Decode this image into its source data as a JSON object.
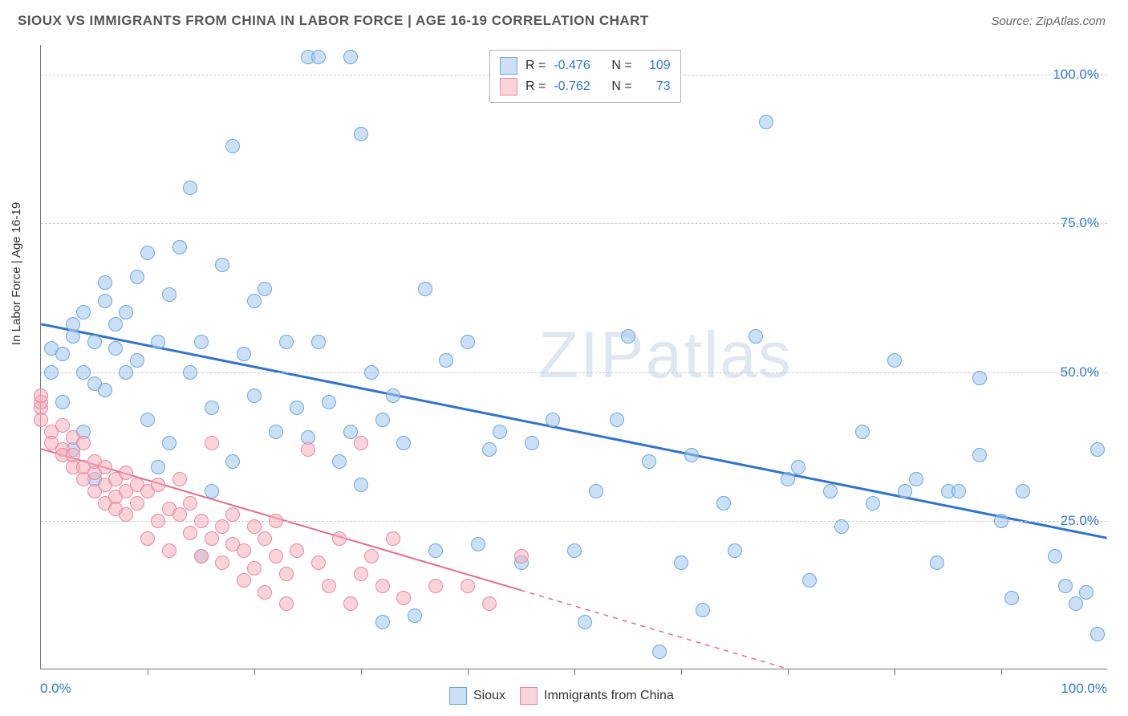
{
  "title": "SIOUX VS IMMIGRANTS FROM CHINA IN LABOR FORCE | AGE 16-19 CORRELATION CHART",
  "source": "Source: ZipAtlas.com",
  "ylabel": "In Labor Force | Age 16-19",
  "watermark": "ZIPatlas",
  "chart": {
    "type": "scatter",
    "xlim": [
      0,
      100
    ],
    "ylim": [
      0,
      105
    ],
    "x_axis_label_left": "0.0%",
    "x_axis_label_right": "100.0%",
    "y_ticks": [
      {
        "v": 25,
        "label": "25.0%"
      },
      {
        "v": 50,
        "label": "50.0%"
      },
      {
        "v": 75,
        "label": "75.0%"
      },
      {
        "v": 100,
        "label": "100.0%"
      }
    ],
    "x_tick_marks": [
      10,
      20,
      30,
      40,
      50,
      60,
      70,
      80,
      90
    ],
    "grid_color": "#cccccc",
    "background_color": "#ffffff",
    "axis_color": "#777777",
    "tick_label_color": "#3278d6",
    "marker_radius": 9,
    "marker_stroke_width": 1.5,
    "series": [
      {
        "name": "Sioux",
        "fill": "rgba(160,199,237,0.55)",
        "stroke": "#6da7e0",
        "trend_color": "#2f74d0",
        "trend_width": 3,
        "trend": {
          "x1": 0,
          "y1": 58,
          "x2": 100,
          "y2": 22
        },
        "trend_dash_from_x": null,
        "R": "-0.476",
        "N": "109",
        "points": [
          [
            1,
            50
          ],
          [
            1,
            54
          ],
          [
            2,
            45
          ],
          [
            2,
            53
          ],
          [
            3,
            37
          ],
          [
            3,
            56
          ],
          [
            3,
            58
          ],
          [
            4,
            40
          ],
          [
            4,
            50
          ],
          [
            4,
            60
          ],
          [
            5,
            32
          ],
          [
            5,
            48
          ],
          [
            5,
            55
          ],
          [
            6,
            47
          ],
          [
            6,
            62
          ],
          [
            6,
            65
          ],
          [
            7,
            54
          ],
          [
            7,
            58
          ],
          [
            8,
            50
          ],
          [
            8,
            60
          ],
          [
            9,
            66
          ],
          [
            9,
            52
          ],
          [
            10,
            42
          ],
          [
            10,
            70
          ],
          [
            11,
            34
          ],
          [
            11,
            55
          ],
          [
            12,
            63
          ],
          [
            12,
            38
          ],
          [
            13,
            71
          ],
          [
            14,
            50
          ],
          [
            14,
            81
          ],
          [
            15,
            19
          ],
          [
            15,
            55
          ],
          [
            16,
            44
          ],
          [
            16,
            30
          ],
          [
            17,
            68
          ],
          [
            18,
            35
          ],
          [
            18,
            88
          ],
          [
            19,
            53
          ],
          [
            20,
            62
          ],
          [
            20,
            46
          ],
          [
            21,
            64
          ],
          [
            22,
            40
          ],
          [
            23,
            55
          ],
          [
            24,
            44
          ],
          [
            25,
            39
          ],
          [
            25,
            103
          ],
          [
            26,
            55
          ],
          [
            26,
            103
          ],
          [
            27,
            45
          ],
          [
            28,
            35
          ],
          [
            29,
            40
          ],
          [
            29,
            103
          ],
          [
            30,
            31
          ],
          [
            30,
            90
          ],
          [
            31,
            50
          ],
          [
            32,
            42
          ],
          [
            32,
            8
          ],
          [
            33,
            46
          ],
          [
            34,
            38
          ],
          [
            35,
            9
          ],
          [
            36,
            64
          ],
          [
            37,
            20
          ],
          [
            38,
            52
          ],
          [
            40,
            55
          ],
          [
            41,
            21
          ],
          [
            42,
            37
          ],
          [
            43,
            40
          ],
          [
            45,
            18
          ],
          [
            46,
            38
          ],
          [
            48,
            42
          ],
          [
            50,
            20
          ],
          [
            51,
            8
          ],
          [
            52,
            30
          ],
          [
            54,
            42
          ],
          [
            55,
            56
          ],
          [
            57,
            35
          ],
          [
            58,
            3
          ],
          [
            60,
            18
          ],
          [
            61,
            36
          ],
          [
            62,
            10
          ],
          [
            64,
            28
          ],
          [
            65,
            20
          ],
          [
            67,
            56
          ],
          [
            68,
            92
          ],
          [
            70,
            32
          ],
          [
            71,
            34
          ],
          [
            72,
            15
          ],
          [
            74,
            30
          ],
          [
            75,
            24
          ],
          [
            77,
            40
          ],
          [
            78,
            28
          ],
          [
            80,
            52
          ],
          [
            81,
            30
          ],
          [
            82,
            32
          ],
          [
            84,
            18
          ],
          [
            85,
            30
          ],
          [
            86,
            30
          ],
          [
            88,
            36
          ],
          [
            90,
            25
          ],
          [
            91,
            12
          ],
          [
            92,
            30
          ],
          [
            95,
            19
          ],
          [
            96,
            14
          ],
          [
            97,
            11
          ],
          [
            98,
            13
          ],
          [
            99,
            37
          ],
          [
            99,
            6
          ],
          [
            88,
            49
          ]
        ]
      },
      {
        "name": "Immigrants from China",
        "fill": "rgba(245,175,190,0.55)",
        "stroke": "#e78aa0",
        "trend_color": "#e56b87",
        "trend_width": 2,
        "trend": {
          "x1": 0,
          "y1": 37,
          "x2": 70,
          "y2": 0
        },
        "trend_dash_from_x": 45,
        "R": "-0.762",
        "N": "73",
        "points": [
          [
            0,
            44
          ],
          [
            0,
            45
          ],
          [
            0,
            46
          ],
          [
            0,
            42
          ],
          [
            1,
            40
          ],
          [
            1,
            38
          ],
          [
            2,
            37
          ],
          [
            2,
            36
          ],
          [
            2,
            41
          ],
          [
            3,
            34
          ],
          [
            3,
            36
          ],
          [
            3,
            39
          ],
          [
            4,
            32
          ],
          [
            4,
            34
          ],
          [
            4,
            38
          ],
          [
            5,
            30
          ],
          [
            5,
            33
          ],
          [
            5,
            35
          ],
          [
            6,
            28
          ],
          [
            6,
            31
          ],
          [
            6,
            34
          ],
          [
            7,
            29
          ],
          [
            7,
            32
          ],
          [
            7,
            27
          ],
          [
            8,
            30
          ],
          [
            8,
            33
          ],
          [
            8,
            26
          ],
          [
            9,
            28
          ],
          [
            9,
            31
          ],
          [
            10,
            22
          ],
          [
            10,
            30
          ],
          [
            11,
            25
          ],
          [
            11,
            31
          ],
          [
            12,
            27
          ],
          [
            12,
            20
          ],
          [
            13,
            26
          ],
          [
            13,
            32
          ],
          [
            14,
            23
          ],
          [
            14,
            28
          ],
          [
            15,
            19
          ],
          [
            15,
            25
          ],
          [
            16,
            38
          ],
          [
            16,
            22
          ],
          [
            17,
            24
          ],
          [
            17,
            18
          ],
          [
            18,
            26
          ],
          [
            18,
            21
          ],
          [
            19,
            20
          ],
          [
            19,
            15
          ],
          [
            20,
            24
          ],
          [
            20,
            17
          ],
          [
            21,
            22
          ],
          [
            21,
            13
          ],
          [
            22,
            19
          ],
          [
            22,
            25
          ],
          [
            23,
            16
          ],
          [
            23,
            11
          ],
          [
            24,
            20
          ],
          [
            25,
            37
          ],
          [
            26,
            18
          ],
          [
            27,
            14
          ],
          [
            28,
            22
          ],
          [
            29,
            11
          ],
          [
            30,
            38
          ],
          [
            30,
            16
          ],
          [
            31,
            19
          ],
          [
            32,
            14
          ],
          [
            33,
            22
          ],
          [
            34,
            12
          ],
          [
            37,
            14
          ],
          [
            40,
            14
          ],
          [
            42,
            11
          ],
          [
            45,
            19
          ]
        ]
      }
    ]
  },
  "legend_top": {
    "r_label": "R =",
    "n_label": "N ="
  },
  "legend_bottom": {
    "items": [
      "Sioux",
      "Immigrants from China"
    ]
  }
}
